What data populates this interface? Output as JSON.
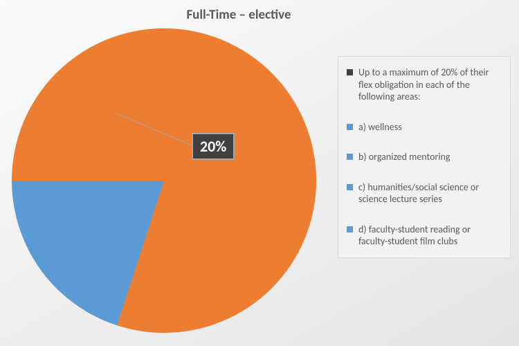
{
  "chart": {
    "type": "pie",
    "title": "Full-Time – elective",
    "title_fontsize": 19,
    "title_color": "#595959",
    "background_gradient": {
      "from": "#fbfbfb",
      "to": "#e4e4e4",
      "angle_deg": 150
    },
    "slices": [
      {
        "id": "remainder",
        "value": 80,
        "color": "#ed7d31"
      },
      {
        "id": "elective",
        "value": 20,
        "color": "#5b9bd5"
      }
    ],
    "start_angle_deg": -90,
    "data_label": {
      "text": "20%",
      "bg": "#404040",
      "color": "#ffffff",
      "border_color": "#a6a6a6",
      "fontsize": 22,
      "leader_color": "#a6a6a6"
    },
    "legend": {
      "bg": "#f2f2f2",
      "border_color": "#d9d9d9",
      "text_color": "#595959",
      "fontsize": 14,
      "items": [
        {
          "swatch": "#404040",
          "label": "Up to a maximum of 20% of their flex obligation in each of the following areas:"
        },
        {
          "swatch": "#5b9bd5",
          "label": "a) wellness"
        },
        {
          "swatch": "#5b9bd5",
          "label": "b) organized mentoring"
        },
        {
          "swatch": "#5b9bd5",
          "label": "c) humanities/social science or science lecture series"
        },
        {
          "swatch": "#5b9bd5",
          "label": "d) faculty-student reading or faculty-student film clubs"
        }
      ]
    }
  }
}
